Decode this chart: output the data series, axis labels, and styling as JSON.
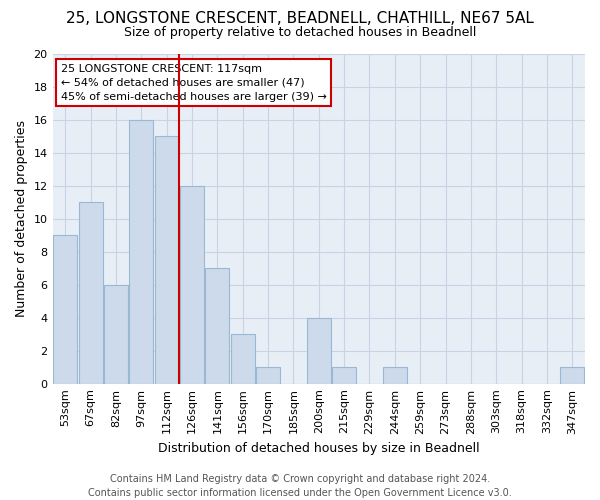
{
  "title1": "25, LONGSTONE CRESCENT, BEADNELL, CHATHILL, NE67 5AL",
  "title2": "Size of property relative to detached houses in Beadnell",
  "xlabel": "Distribution of detached houses by size in Beadnell",
  "ylabel": "Number of detached properties",
  "categories": [
    "53sqm",
    "67sqm",
    "82sqm",
    "97sqm",
    "112sqm",
    "126sqm",
    "141sqm",
    "156sqm",
    "170sqm",
    "185sqm",
    "200sqm",
    "215sqm",
    "229sqm",
    "244sqm",
    "259sqm",
    "273sqm",
    "288sqm",
    "303sqm",
    "318sqm",
    "332sqm",
    "347sqm"
  ],
  "values": [
    9,
    11,
    6,
    16,
    15,
    12,
    7,
    3,
    1,
    0,
    4,
    1,
    0,
    1,
    0,
    0,
    0,
    0,
    0,
    0,
    1
  ],
  "bar_color": "#ccdaeb",
  "bar_edge_color": "#9ab8d4",
  "property_line_x": 4.5,
  "annotation_text1": "25 LONGSTONE CRESCENT: 117sqm",
  "annotation_text2": "← 54% of detached houses are smaller (47)",
  "annotation_text3": "45% of semi-detached houses are larger (39) →",
  "annotation_box_facecolor": "#ffffff",
  "annotation_box_edgecolor": "#cc0000",
  "footer1": "Contains HM Land Registry data © Crown copyright and database right 2024.",
  "footer2": "Contains public sector information licensed under the Open Government Licence v3.0.",
  "ylim": [
    0,
    20
  ],
  "yticks": [
    0,
    2,
    4,
    6,
    8,
    10,
    12,
    14,
    16,
    18,
    20
  ],
  "grid_color": "#c8d4e4",
  "background_color": "#e8eef6",
  "fig_facecolor": "#ffffff",
  "title1_fontsize": 11,
  "title2_fontsize": 9,
  "xlabel_fontsize": 9,
  "ylabel_fontsize": 9,
  "tick_fontsize": 8,
  "annotation_fontsize": 8,
  "footer_fontsize": 7
}
